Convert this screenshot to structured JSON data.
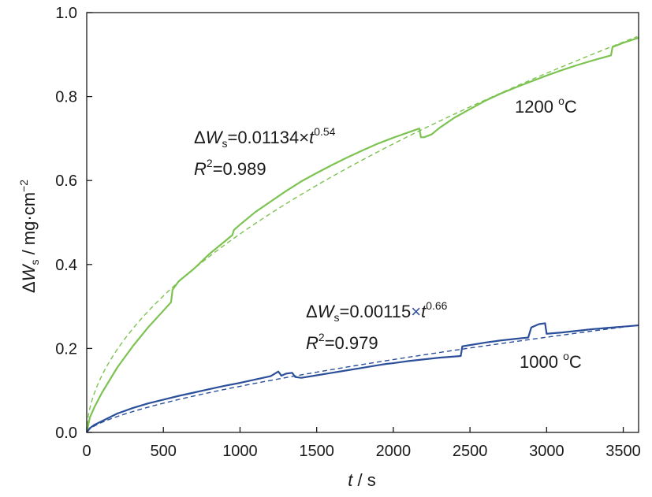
{
  "chart_data": {
    "type": "line",
    "xlabel": {
      "var": "t",
      "unit": " / s"
    },
    "ylabel": {
      "delta": "Δ",
      "var": "W",
      "sub": "s",
      "unit": " / mg·cm",
      "sup": "−2"
    },
    "xlim": [
      0,
      3600
    ],
    "ylim": [
      0,
      1.0
    ],
    "xticks": [
      0,
      500,
      1000,
      1500,
      2000,
      2500,
      3000,
      3500
    ],
    "yticks": [
      0.0,
      0.2,
      0.4,
      0.6,
      0.8,
      1.0
    ],
    "xtick_labels": [
      "0",
      "500",
      "1000",
      "1500",
      "2000",
      "2500",
      "3000",
      "3500"
    ],
    "ytick_labels": [
      "0.0",
      "0.2",
      "0.4",
      "0.6",
      "0.8",
      "1.0"
    ],
    "grid": false,
    "colors": {
      "green": "#7dc352",
      "blue": "#2b4f9a",
      "axis": "#1a1a1a"
    },
    "series": [
      {
        "key": "1200-measured",
        "label": "1200 ",
        "label_sup": "o",
        "label_tail": "C",
        "color": "#7dc352",
        "style": "solid",
        "points": [
          [
            0,
            0
          ],
          [
            20,
            0.035
          ],
          [
            50,
            0.06
          ],
          [
            100,
            0.095
          ],
          [
            150,
            0.125
          ],
          [
            200,
            0.155
          ],
          [
            300,
            0.205
          ],
          [
            400,
            0.25
          ],
          [
            500,
            0.29
          ],
          [
            550,
            0.31
          ],
          [
            560,
            0.34
          ],
          [
            600,
            0.36
          ],
          [
            700,
            0.39
          ],
          [
            800,
            0.425
          ],
          [
            900,
            0.455
          ],
          [
            950,
            0.47
          ],
          [
            960,
            0.482
          ],
          [
            1000,
            0.495
          ],
          [
            1100,
            0.525
          ],
          [
            1200,
            0.55
          ],
          [
            1300,
            0.575
          ],
          [
            1400,
            0.598
          ],
          [
            1500,
            0.618
          ],
          [
            1600,
            0.637
          ],
          [
            1700,
            0.655
          ],
          [
            1800,
            0.672
          ],
          [
            1900,
            0.688
          ],
          [
            2000,
            0.702
          ],
          [
            2100,
            0.715
          ],
          [
            2170,
            0.724
          ],
          [
            2180,
            0.703
          ],
          [
            2200,
            0.703
          ],
          [
            2250,
            0.71
          ],
          [
            2300,
            0.725
          ],
          [
            2400,
            0.75
          ],
          [
            2500,
            0.77
          ],
          [
            2600,
            0.79
          ],
          [
            2700,
            0.807
          ],
          [
            2800,
            0.822
          ],
          [
            2900,
            0.836
          ],
          [
            3000,
            0.85
          ],
          [
            3100,
            0.863
          ],
          [
            3200,
            0.875
          ],
          [
            3300,
            0.886
          ],
          [
            3420,
            0.898
          ],
          [
            3430,
            0.918
          ],
          [
            3500,
            0.928
          ],
          [
            3600,
            0.94
          ]
        ]
      },
      {
        "key": "1200-fit",
        "color": "#7dc352",
        "style": "dashed",
        "fit": {
          "a": 0.01134,
          "n": 0.54
        }
      },
      {
        "key": "1000-measured",
        "label": "1000 ",
        "label_sup": "o",
        "label_tail": "C",
        "color": "#2b4f9a",
        "style": "solid",
        "points": [
          [
            0,
            0
          ],
          [
            20,
            0.01
          ],
          [
            50,
            0.018
          ],
          [
            100,
            0.027
          ],
          [
            200,
            0.045
          ],
          [
            300,
            0.058
          ],
          [
            400,
            0.069
          ],
          [
            500,
            0.078
          ],
          [
            600,
            0.087
          ],
          [
            700,
            0.095
          ],
          [
            800,
            0.103
          ],
          [
            900,
            0.111
          ],
          [
            1000,
            0.118
          ],
          [
            1100,
            0.126
          ],
          [
            1200,
            0.134
          ],
          [
            1250,
            0.145
          ],
          [
            1270,
            0.135
          ],
          [
            1300,
            0.14
          ],
          [
            1340,
            0.142
          ],
          [
            1360,
            0.132
          ],
          [
            1400,
            0.13
          ],
          [
            1500,
            0.136
          ],
          [
            1600,
            0.142
          ],
          [
            1700,
            0.148
          ],
          [
            1800,
            0.154
          ],
          [
            1900,
            0.16
          ],
          [
            1950,
            0.163
          ],
          [
            2000,
            0.165
          ],
          [
            2100,
            0.17
          ],
          [
            2200,
            0.174
          ],
          [
            2300,
            0.178
          ],
          [
            2440,
            0.182
          ],
          [
            2450,
            0.205
          ],
          [
            2500,
            0.208
          ],
          [
            2600,
            0.214
          ],
          [
            2700,
            0.219
          ],
          [
            2800,
            0.223
          ],
          [
            2880,
            0.226
          ],
          [
            2900,
            0.25
          ],
          [
            2950,
            0.258
          ],
          [
            2990,
            0.26
          ],
          [
            3000,
            0.235
          ],
          [
            3100,
            0.238
          ],
          [
            3200,
            0.242
          ],
          [
            3300,
            0.246
          ],
          [
            3400,
            0.249
          ],
          [
            3500,
            0.252
          ],
          [
            3600,
            0.255
          ]
        ]
      },
      {
        "key": "1000-fit",
        "color": "#2b4f9a",
        "style": "dashed",
        "fit": {
          "a": 0.00115,
          "n": 0.66
        }
      }
    ],
    "annotations": {
      "eq1200": {
        "delta": "Δ",
        "var": "W",
        "sub": "s",
        "eq": "=0.01134",
        "times": "×",
        "tvar": "t",
        "exp": "0.54"
      },
      "r1200": {
        "var": "R",
        "sup": "2",
        "eq": "=0.989"
      },
      "eq1000": {
        "delta": "Δ",
        "var": "W",
        "sub": "s",
        "eq": "=0.00115",
        "times": "×",
        "tvar": "t",
        "exp": "0.66"
      },
      "r1000": {
        "var": "R",
        "sup": "2",
        "eq": "=0.979"
      }
    }
  }
}
